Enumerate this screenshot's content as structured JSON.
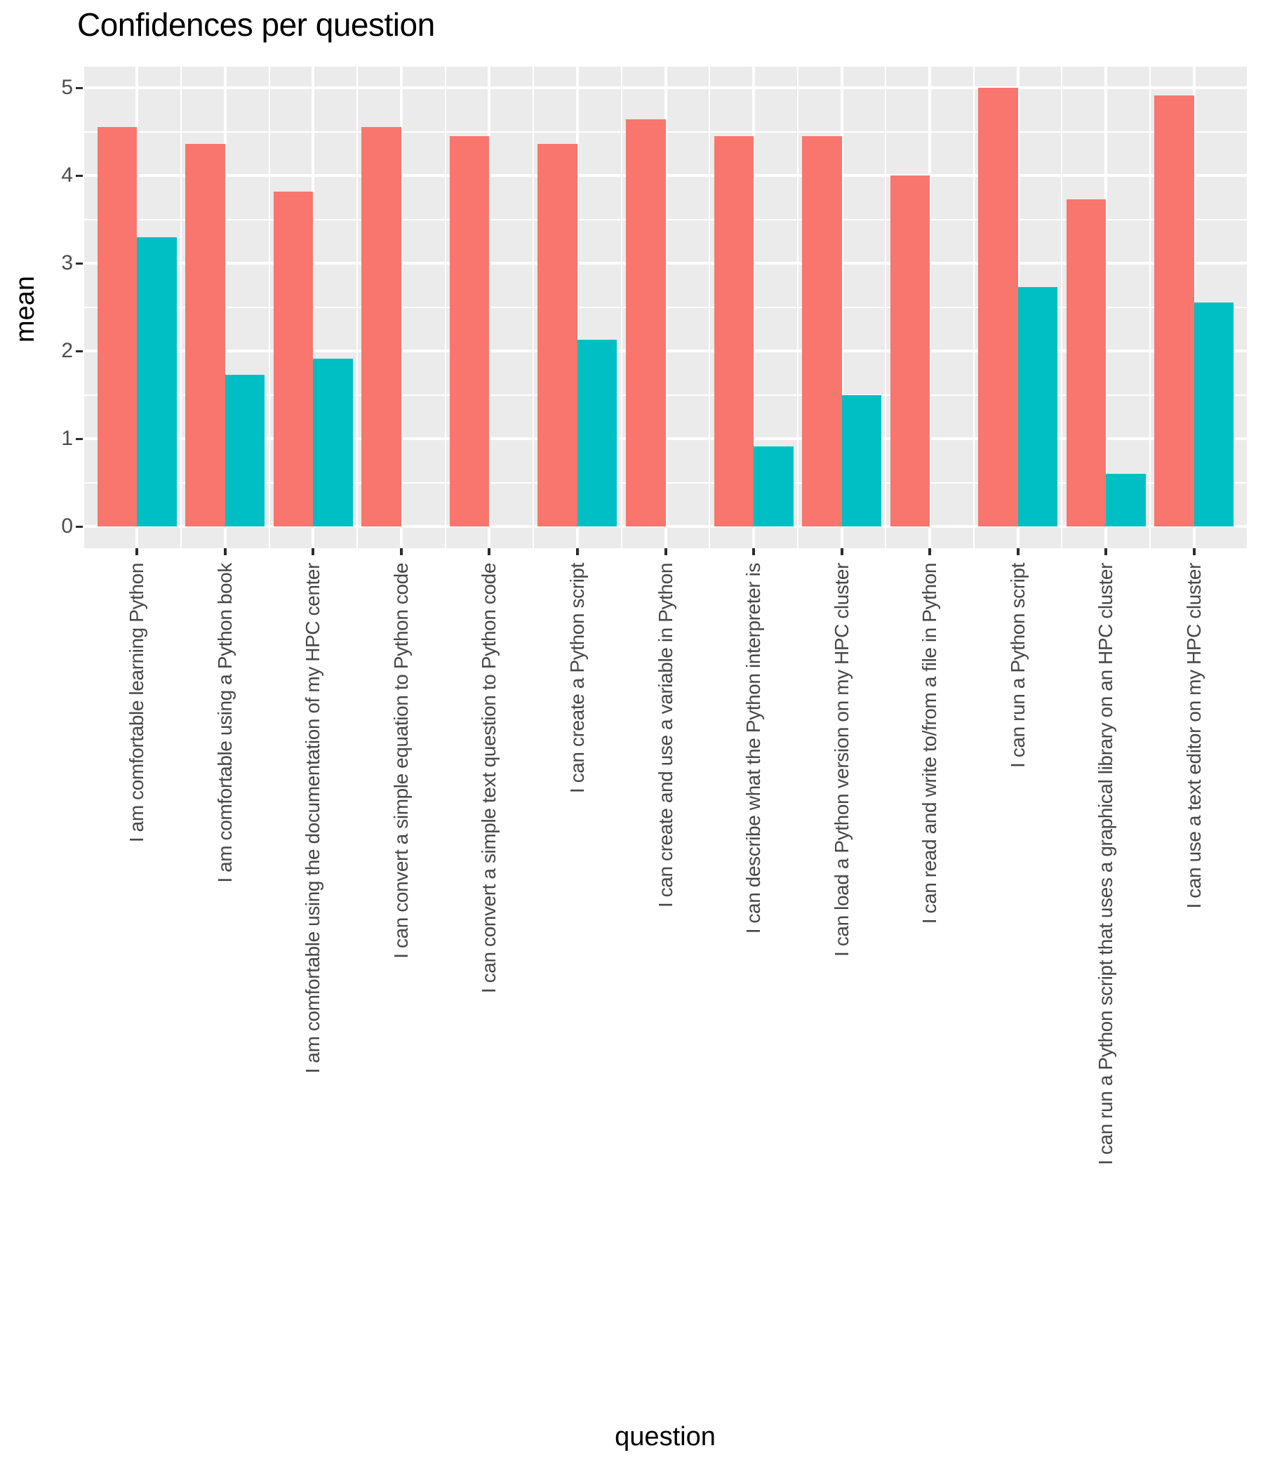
{
  "title": "Confidences per question",
  "colors": {
    "panel_background": "#EBEBEB",
    "gridline": "#FFFFFF",
    "axis_text": "#4D4D4D",
    "tick_mark": "#2B2B2B",
    "title_text": "#000000",
    "bar_red": "#F8766D",
    "bar_teal": "#00BFC4"
  },
  "chart_data": {
    "type": "bar",
    "title": "Confidences per question",
    "xlabel": "question",
    "ylabel": "mean",
    "ylim": [
      0,
      5
    ],
    "yticks": [
      0,
      1,
      2,
      3,
      4,
      5
    ],
    "grid": "white major gridlines at integers and minor gridlines at halves on gray panel; vertical major at category centers, minor between categories",
    "legend_position": "none",
    "bar_layout": "dodged pairs, red bar left of category center, teal bar right",
    "categories": [
      "I am comfortable learning Python",
      "I am comfortable using a Python book",
      "I am comfortable using the documentation of my HPC center",
      "I can convert a simple equation to Python code",
      "I can convert a simple text question to Python code",
      "I can create a Python script",
      "I can create and use a variable in Python",
      "I can describe what the Python interpreter is",
      "I can load a Python version on my HPC cluster",
      "I can read and write to/from a file in Python",
      "I can run a Python script",
      "I can run a Python script that uses a graphical library on an HPC cluster",
      "I can use a text editor on my HPC cluster"
    ],
    "series": [
      {
        "name": "series-1-red",
        "color": "#F8766D",
        "values": [
          4.55,
          4.36,
          3.82,
          4.55,
          4.45,
          4.36,
          4.64,
          4.45,
          4.45,
          4.0,
          5.0,
          3.73,
          4.91
        ]
      },
      {
        "name": "series-2-teal",
        "color": "#00BFC4",
        "values": [
          3.3,
          1.73,
          1.91,
          null,
          null,
          2.13,
          null,
          0.91,
          1.5,
          null,
          2.73,
          0.6,
          2.55
        ]
      }
    ]
  }
}
